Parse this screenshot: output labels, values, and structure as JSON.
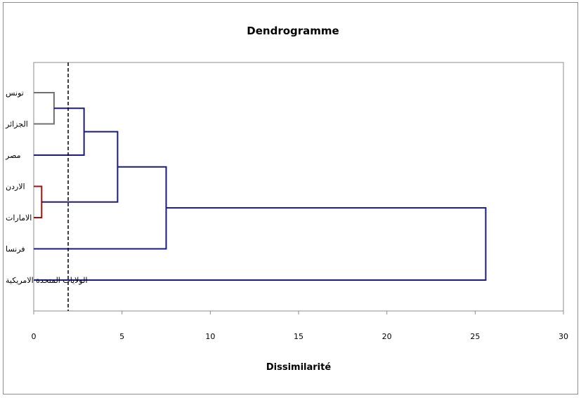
{
  "chart_data": {
    "type": "dendrogram",
    "title": "Dendrogramme",
    "xlabel": "Dissimilarité",
    "ylabel": "",
    "xlim": [
      0,
      30
    ],
    "xticks": [
      0,
      5,
      10,
      15,
      20,
      25,
      30
    ],
    "grid": false,
    "cut_line": 1.95,
    "leaves": [
      "تونس",
      "الجزائر",
      "مصر",
      "الاردن",
      "الامارات",
      "فرنسا",
      "الولايات المتحدة الامريكية"
    ],
    "merges": [
      {
        "a": "leaf:0",
        "b": "leaf:1",
        "height": 1.15,
        "color": "#707070"
      },
      {
        "a": "leaf:3",
        "b": "leaf:4",
        "height": 0.45,
        "color": "#a01010"
      },
      {
        "a": "node:0",
        "b": "leaf:2",
        "height": 2.85,
        "color": "#1a1a80"
      },
      {
        "a": "node:2",
        "b": "node:1",
        "height": 4.75,
        "color": "#1a1a80"
      },
      {
        "a": "node:3",
        "b": "leaf:5",
        "height": 7.5,
        "color": "#1a1a80"
      },
      {
        "a": "node:4",
        "b": "leaf:6",
        "height": 25.6,
        "color": "#1a1a80"
      }
    ],
    "colors": {
      "frame": "#8c8c8c",
      "plot_border": "#8c8c8c",
      "axis": "#8c8c8c"
    }
  }
}
